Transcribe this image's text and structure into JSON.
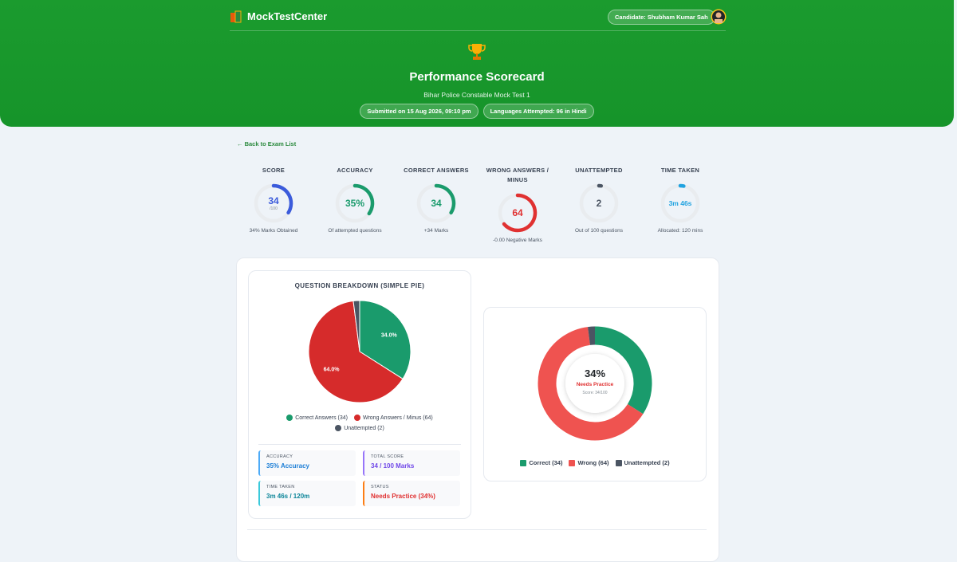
{
  "header": {
    "brand": "MockTestCenter",
    "candidate": "Candidate: Shubham Kumar Sah",
    "title": "Performance Scorecard",
    "subtitle": "Bihar Police Constable Mock Test 1",
    "badges": [
      "Submitted on 15 Aug 2026, 09:10 pm",
      "Languages Attempted: 96 in Hindi"
    ]
  },
  "back_link": "← Back to Exam List",
  "stats": [
    {
      "title": "SCORE",
      "value": 34,
      "max_label": "/100",
      "caption": "34% Marks Obtained",
      "color": "#3b5bdb"
    },
    {
      "title": "ACCURACY",
      "value": 35,
      "value_label": "35%",
      "caption": "Of attempted questions",
      "color": "#1a9b6c"
    },
    {
      "title": "CORRECT ANSWERS",
      "value": 34,
      "caption": "+34 Marks",
      "color": "#1a9b6c"
    },
    {
      "title": "WRONG ANSWERS / MINUS",
      "value": 64,
      "caption": "-0.00 Negative Marks",
      "color": "#e03131"
    },
    {
      "title": "UNATTEMPTED",
      "value": 2,
      "caption": "Out of 100 questions",
      "color": "#4b5563"
    },
    {
      "title": "TIME TAKEN",
      "value_label": "3m 46s",
      "caption": "Allocated: 120 mins",
      "color": "#1fa2e0"
    }
  ],
  "pie": {
    "title": "QUESTION BREAKDOWN (SIMPLE PIE)",
    "categories": [
      "Correct Answers (34)",
      "Wrong Answers / Minus (64)",
      "Unattempted (2)"
    ],
    "values": [
      34,
      64,
      2
    ],
    "value_labels": [
      "34.0%",
      "64.0%",
      null
    ],
    "colors": [
      "#1a9b6c",
      "#d62b2b",
      "#4b5563"
    ]
  },
  "summary": [
    {
      "label": "ACCURACY",
      "value": "35% Accuracy",
      "color": "#1c7ed6",
      "border": "#4dabf7"
    },
    {
      "label": "TOTAL SCORE",
      "value": "34 / 100 Marks",
      "color": "#7048e8",
      "border": "#9775fa"
    },
    {
      "label": "TIME TAKEN",
      "value": "3m 46s / 120m",
      "color": "#0c8599",
      "border": "#3bc9db"
    },
    {
      "label": "STATUS",
      "value": "Needs Practice (34%)",
      "color": "#e03131",
      "border": "#fd7e14"
    }
  ],
  "donut": {
    "center_value": "34%",
    "status": "Needs Practice",
    "score": "Score: 34/100",
    "categories": [
      "Correct (34)",
      "Wrong (64)",
      "Unattempted (2)"
    ],
    "values": [
      34,
      64,
      2
    ],
    "colors": [
      "#1a9b6c",
      "#ef5350",
      "#4b5563"
    ]
  }
}
